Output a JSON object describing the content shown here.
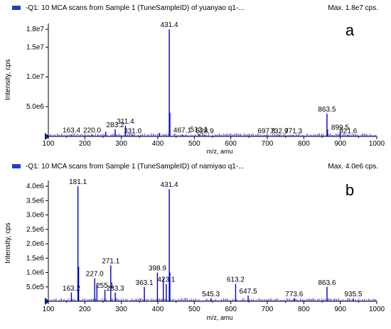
{
  "colors": {
    "trace": "#0000cc",
    "axis": "#000000",
    "header_marker": "#1f3fbf",
    "start_marker": "#0a1f6e"
  },
  "chart_data": [
    {
      "type": "line",
      "header": "-Q1: 10 MCA scans from Sample 1 (TuneSampleID) of yuanyao q1-...",
      "max_label": "Max. 1.8e7 cps.",
      "panel_letter": "a",
      "xlabel": "m/z, amu",
      "ylabel": "Intensity, cps",
      "xlim": [
        100,
        1000
      ],
      "ylim": [
        0,
        18500000.0
      ],
      "xticks": [
        100,
        200,
        300,
        400,
        500,
        600,
        700,
        800,
        900,
        1000
      ],
      "yticks": [
        {
          "value": 5000000.0,
          "label": "5.0e6"
        },
        {
          "value": 10000000.0,
          "label": "1.0e7"
        },
        {
          "value": 15000000.0,
          "label": "1.5e7"
        },
        {
          "value": 18000000.0,
          "label": "1.8e7"
        }
      ],
      "peaks": [
        {
          "x": 163.4,
          "y": 300000.0,
          "label": "163.4"
        },
        {
          "x": 220.0,
          "y": 300000.0,
          "label": "220.0"
        },
        {
          "x": 257.0,
          "y": 800000.0,
          "label": ""
        },
        {
          "x": 283.2,
          "y": 1200000.0,
          "label": "283.2"
        },
        {
          "x": 311.4,
          "y": 1800000.0,
          "label": "311.4"
        },
        {
          "x": 331.0,
          "y": 200000.0,
          "label": "331.0"
        },
        {
          "x": 405.0,
          "y": 600000.0,
          "label": ""
        },
        {
          "x": 431.4,
          "y": 18000000.0,
          "label": "431.4"
        },
        {
          "x": 433.0,
          "y": 4000000.0,
          "label": ""
        },
        {
          "x": 467.1,
          "y": 300000.0,
          "label": "467.1"
        },
        {
          "x": 513.1,
          "y": 400000.0,
          "label": "513.1"
        },
        {
          "x": 528.9,
          "y": 200000.0,
          "label": "528.9"
        },
        {
          "x": 697.8,
          "y": 200000.0,
          "label": "697.8"
        },
        {
          "x": 732.9,
          "y": 200000.0,
          "label": "732.9"
        },
        {
          "x": 771.3,
          "y": 200000.0,
          "label": "771.3"
        },
        {
          "x": 863.5,
          "y": 3800000.0,
          "label": "863.5"
        },
        {
          "x": 865.0,
          "y": 1200000.0,
          "label": ""
        },
        {
          "x": 899.5,
          "y": 800000.0,
          "label": "899.5"
        },
        {
          "x": 921.6,
          "y": 200000.0,
          "label": "921.6"
        }
      ]
    },
    {
      "type": "line",
      "header": "-Q1: 10 MCA scans from Sample 1 (TuneSampleID) of namiyao q1-...",
      "max_label": "Max. 4.0e6 cps.",
      "panel_letter": "b",
      "xlabel": "m/z, amu",
      "ylabel": "Intensity, cps",
      "xlim": [
        100,
        1000
      ],
      "ylim": [
        0,
        4100000.0
      ],
      "xticks": [
        100,
        200,
        300,
        400,
        500,
        600,
        700,
        800,
        900,
        1000
      ],
      "yticks": [
        {
          "value": 500000.0,
          "label": "5.0e5"
        },
        {
          "value": 1000000.0,
          "label": "1.0e6"
        },
        {
          "value": 1500000.0,
          "label": "1.5e6"
        },
        {
          "value": 2000000.0,
          "label": "2.0e6"
        },
        {
          "value": 2500000.0,
          "label": "2.5e6"
        },
        {
          "value": 3000000.0,
          "label": "3.0e6"
        },
        {
          "value": 3500000.0,
          "label": "3.5e6"
        },
        {
          "value": 4000000.0,
          "label": "4.0e6"
        }
      ],
      "peaks": [
        {
          "x": 163.2,
          "y": 300000.0,
          "label": "163.2"
        },
        {
          "x": 181.1,
          "y": 4000000.0,
          "label": "181.1"
        },
        {
          "x": 183.0,
          "y": 1200000.0,
          "label": ""
        },
        {
          "x": 227.0,
          "y": 800000.0,
          "label": "227.0"
        },
        {
          "x": 233.0,
          "y": 600000.0,
          "label": ""
        },
        {
          "x": 255.1,
          "y": 400000.0,
          "label": "255.1"
        },
        {
          "x": 271.1,
          "y": 1250000.0,
          "label": "271.1"
        },
        {
          "x": 283.3,
          "y": 300000.0,
          "label": "283.3"
        },
        {
          "x": 363.1,
          "y": 500000.0,
          "label": "363.1"
        },
        {
          "x": 398.9,
          "y": 1000000.0,
          "label": "398.9"
        },
        {
          "x": 415.0,
          "y": 800000.0,
          "label": ""
        },
        {
          "x": 423.1,
          "y": 600000.0,
          "label": "423.1"
        },
        {
          "x": 431.4,
          "y": 3900000.0,
          "label": "431.4"
        },
        {
          "x": 433.0,
          "y": 1000000.0,
          "label": ""
        },
        {
          "x": 545.3,
          "y": 100000.0,
          "label": "545.3"
        },
        {
          "x": 613.2,
          "y": 600000.0,
          "label": "613.2"
        },
        {
          "x": 647.5,
          "y": 200000.0,
          "label": "647.5"
        },
        {
          "x": 773.6,
          "y": 100000.0,
          "label": "773.6"
        },
        {
          "x": 863.6,
          "y": 500000.0,
          "label": "863.6"
        },
        {
          "x": 935.5,
          "y": 100000.0,
          "label": "935.5"
        }
      ]
    }
  ]
}
